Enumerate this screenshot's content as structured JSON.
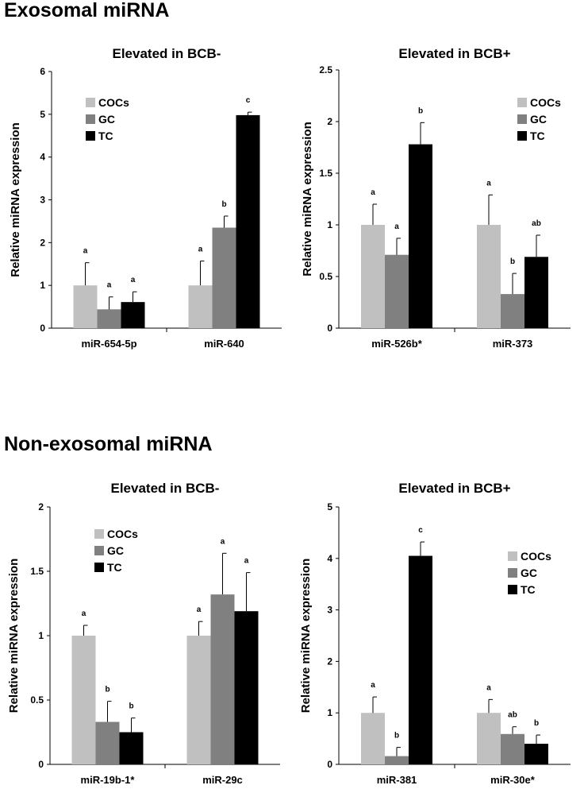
{
  "sections": [
    {
      "title": "Exosomal miRNA"
    },
    {
      "title": "Non-exosomal miRNA"
    }
  ],
  "colors": {
    "COCs": "#c0c0c0",
    "GC": "#808080",
    "TC": "#000000"
  },
  "chart_data": [
    {
      "type": "bar",
      "title": "Elevated in BCB-",
      "ylabel": "Relative miRNA expression",
      "ylim": [
        0,
        6
      ],
      "yticks": [
        "0",
        "1",
        "2",
        "3",
        "4",
        "5",
        "6"
      ],
      "categories": [
        "miR-654-5p",
        "miR-640"
      ],
      "legend": [
        "COCs",
        "GC",
        "TC"
      ],
      "series": [
        {
          "name": "COCs",
          "values": [
            1.0,
            1.0
          ],
          "errors": [
            0.53,
            0.57
          ],
          "labels": [
            "a",
            "a"
          ]
        },
        {
          "name": "GC",
          "values": [
            0.44,
            2.35
          ],
          "errors": [
            0.29,
            0.27
          ],
          "labels": [
            "a",
            "b"
          ]
        },
        {
          "name": "TC",
          "values": [
            0.61,
            4.98
          ],
          "errors": [
            0.24,
            0.07
          ],
          "labels": [
            "a",
            "c"
          ]
        }
      ]
    },
    {
      "type": "bar",
      "title": "Elevated in BCB+",
      "ylabel": "Relative miRNA expression",
      "ylim": [
        0,
        2.5
      ],
      "yticks": [
        "0",
        "0.5",
        "1",
        "1.5",
        "2",
        "2.5"
      ],
      "categories": [
        "miR-526b*",
        "miR-373"
      ],
      "legend": [
        "COCs",
        "GC",
        "TC"
      ],
      "series": [
        {
          "name": "COCs",
          "values": [
            1.0,
            1.0
          ],
          "errors": [
            0.2,
            0.29
          ],
          "labels": [
            "a",
            "a"
          ]
        },
        {
          "name": "GC",
          "values": [
            0.71,
            0.33
          ],
          "errors": [
            0.16,
            0.2
          ],
          "labels": [
            "a",
            "b"
          ]
        },
        {
          "name": "TC",
          "values": [
            1.78,
            0.69
          ],
          "errors": [
            0.21,
            0.21
          ],
          "labels": [
            "b",
            "ab"
          ]
        }
      ]
    },
    {
      "type": "bar",
      "title": "Elevated in BCB-",
      "ylabel": "Relative miRNA expression",
      "ylim": [
        0,
        2
      ],
      "yticks": [
        "0",
        "0.5",
        "1",
        "1.5",
        "2"
      ],
      "categories": [
        "miR-19b-1*",
        "miR-29c"
      ],
      "legend": [
        "COCs",
        "GC",
        "TC"
      ],
      "series": [
        {
          "name": "COCs",
          "values": [
            1.0,
            1.0
          ],
          "errors": [
            0.08,
            0.11
          ],
          "labels": [
            "a",
            "a"
          ]
        },
        {
          "name": "GC",
          "values": [
            0.33,
            1.32
          ],
          "errors": [
            0.16,
            0.32
          ],
          "labels": [
            "b",
            "a"
          ]
        },
        {
          "name": "TC",
          "values": [
            0.25,
            1.19
          ],
          "errors": [
            0.11,
            0.3
          ],
          "labels": [
            "b",
            "a"
          ]
        }
      ]
    },
    {
      "type": "bar",
      "title": "Elevated in BCB+",
      "ylabel": "Relative miRNA expression",
      "ylim": [
        0,
        5
      ],
      "yticks": [
        "0",
        "1",
        "2",
        "3",
        "4",
        "5"
      ],
      "categories": [
        "miR-381",
        "miR-30e*"
      ],
      "legend": [
        "COCs",
        "GC",
        "TC"
      ],
      "series": [
        {
          "name": "COCs",
          "values": [
            1.0,
            1.0
          ],
          "errors": [
            0.31,
            0.26
          ],
          "labels": [
            "a",
            "a"
          ]
        },
        {
          "name": "GC",
          "values": [
            0.16,
            0.59
          ],
          "errors": [
            0.17,
            0.14
          ],
          "labels": [
            "b",
            "ab"
          ]
        },
        {
          "name": "TC",
          "values": [
            4.05,
            0.4
          ],
          "errors": [
            0.27,
            0.17
          ],
          "labels": [
            "c",
            "b"
          ]
        }
      ]
    }
  ]
}
